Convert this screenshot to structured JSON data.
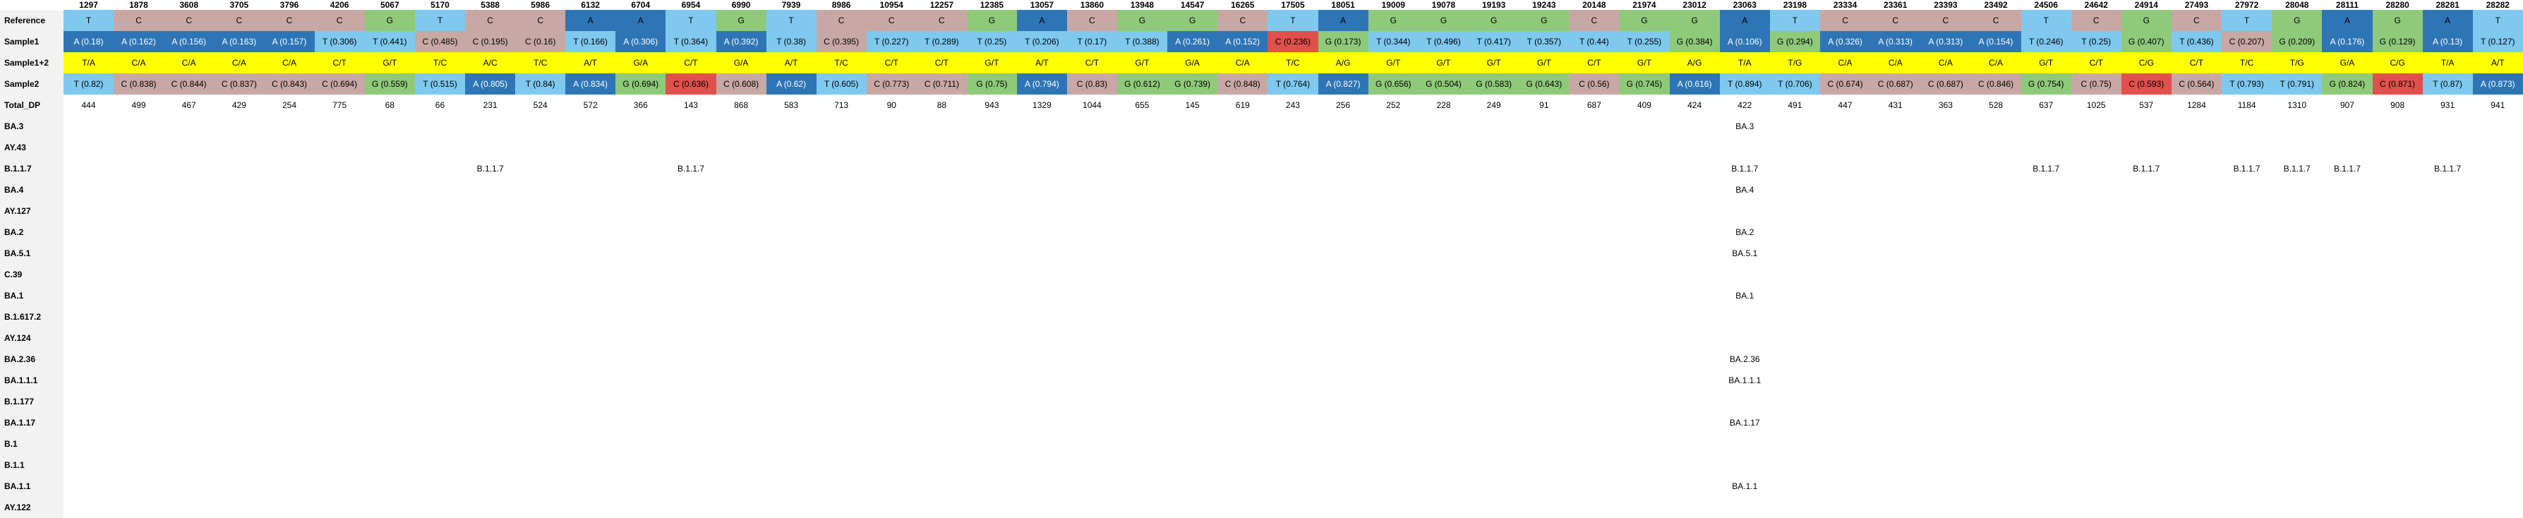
{
  "positions": [
    "1297",
    "1878",
    "3608",
    "3705",
    "3796",
    "4206",
    "5067",
    "5170",
    "5388",
    "5986",
    "6132",
    "6704",
    "6954",
    "6990",
    "7939",
    "8986",
    "10954",
    "12257",
    "12385",
    "13057",
    "13860",
    "13948",
    "14547",
    "16265",
    "17505",
    "18051",
    "19009",
    "19078",
    "19193",
    "19243",
    "20148",
    "21974",
    "23012",
    "23063",
    "23198",
    "23334",
    "23361",
    "23393",
    "23492",
    "24506",
    "24642",
    "24914",
    "27493",
    "27972",
    "28048",
    "28111",
    "28280",
    "28281",
    "28282"
  ],
  "row_labels": {
    "reference": "Reference",
    "sample1": "Sample1",
    "sample12": "Sample1+2",
    "sample2": "Sample2",
    "total_dp": "Total_DP"
  },
  "reference": [
    "T",
    "C",
    "C",
    "C",
    "C",
    "C",
    "G",
    "T",
    "C",
    "C",
    "A",
    "A",
    "T",
    "G",
    "T",
    "C",
    "C",
    "C",
    "G",
    "A",
    "C",
    "G",
    "G",
    "C",
    "T",
    "A",
    "G",
    "G",
    "G",
    "G",
    "C",
    "G",
    "G",
    "A",
    "T",
    "C",
    "C",
    "C",
    "C",
    "T",
    "C",
    "G",
    "C",
    "T",
    "G",
    "A",
    "G",
    "A",
    "T"
  ],
  "sample1": [
    "A (0.18)",
    "A (0.162)",
    "A (0.156)",
    "A (0.163)",
    "A (0.157)",
    "T (0.306)",
    "T (0.441)",
    "C (0.485)",
    "C (0.195)",
    "C (0.16)",
    "T (0.166)",
    "A (0.306)",
    "T (0.364)",
    "A (0.392)",
    "T (0.38)",
    "C (0.395)",
    "T (0.227)",
    "T (0.289)",
    "T (0.25)",
    "T (0.206)",
    "T (0.17)",
    "T (0.388)",
    "A (0.261)",
    "A (0.152)",
    "C (0.236)",
    "G (0.173)",
    "T (0.344)",
    "T (0.496)",
    "T (0.417)",
    "T (0.357)",
    "T (0.44)",
    "T (0.255)",
    "G (0.384)",
    "A (0.106)",
    "G (0.294)",
    "A (0.326)",
    "A (0.313)",
    "A (0.313)",
    "A (0.154)",
    "T (0.246)",
    "T (0.25)",
    "G (0.407)",
    "T (0.436)",
    "C (0.207)",
    "G (0.209)",
    "A (0.176)",
    "G (0.129)",
    "A (0.13)",
    "T (0.127)"
  ],
  "sample12": [
    "T/A",
    "C/A",
    "C/A",
    "C/A",
    "C/A",
    "C/T",
    "G/T",
    "T/C",
    "A/C",
    "T/C",
    "A/T",
    "G/A",
    "C/T",
    "G/A",
    "A/T",
    "T/C",
    "C/T",
    "C/T",
    "G/T",
    "A/T",
    "C/T",
    "G/T",
    "G/A",
    "C/A",
    "T/C",
    "A/G",
    "G/T",
    "G/T",
    "G/T",
    "G/T",
    "C/T",
    "G/T",
    "A/G",
    "T/A",
    "T/G",
    "C/A",
    "C/A",
    "C/A",
    "C/A",
    "G/T",
    "C/T",
    "C/G",
    "C/T",
    "T/C",
    "T/G",
    "G/A",
    "C/G",
    "T/A",
    "A/T"
  ],
  "sample2": [
    "T (0.82)",
    "C (0.838)",
    "C (0.844)",
    "C (0.837)",
    "C (0.843)",
    "C (0.694)",
    "G (0.559)",
    "T (0.515)",
    "A (0.805)",
    "T (0.84)",
    "A (0.834)",
    "G (0.694)",
    "C (0.636)",
    "C (0.608)",
    "A (0.62)",
    "T (0.605)",
    "C (0.773)",
    "C (0.711)",
    "G (0.75)",
    "A (0.794)",
    "C (0.83)",
    "G (0.612)",
    "G (0.739)",
    "C (0.848)",
    "T (0.764)",
    "A (0.827)",
    "G (0.656)",
    "G (0.504)",
    "G (0.583)",
    "G (0.643)",
    "C (0.56)",
    "G (0.745)",
    "A (0.616)",
    "T (0.894)",
    "T (0.706)",
    "C (0.674)",
    "C (0.687)",
    "C (0.687)",
    "C (0.846)",
    "G (0.754)",
    "C (0.75)",
    "C (0.593)",
    "C (0.564)",
    "T (0.793)",
    "T (0.791)",
    "G (0.824)",
    "C (0.871)",
    "T (0.87)",
    "A (0.873)"
  ],
  "total_dp": [
    "444",
    "499",
    "467",
    "429",
    "254",
    "775",
    "68",
    "66",
    "231",
    "524",
    "572",
    "366",
    "143",
    "868",
    "583",
    "713",
    "90",
    "88",
    "943",
    "1329",
    "1044",
    "655",
    "145",
    "619",
    "243",
    "256",
    "252",
    "228",
    "249",
    "91",
    "687",
    "409",
    "424",
    "422",
    "491",
    "447",
    "431",
    "363",
    "528",
    "637",
    "1025",
    "537",
    "1284",
    "1184",
    "1310",
    "907",
    "908",
    "931",
    "941"
  ],
  "lineages": [
    {
      "name": "BA.3",
      "cells": {
        "33": "BA.3"
      }
    },
    {
      "name": "AY.43",
      "cells": {}
    },
    {
      "name": "B.1.1.7",
      "cells": {
        "8": "B.1.1.7",
        "12": "B.1.1.7",
        "33": "B.1.1.7",
        "39": "B.1.1.7",
        "41": "B.1.1.7",
        "43": "B.1.1.7",
        "44": "B.1.1.7",
        "45": "B.1.1.7",
        "47": "B.1.1.7"
      }
    },
    {
      "name": "BA.4",
      "cells": {
        "33": "BA.4"
      }
    },
    {
      "name": "AY.127",
      "cells": {}
    },
    {
      "name": "BA.2",
      "cells": {
        "33": "BA.2"
      }
    },
    {
      "name": "BA.5.1",
      "cells": {
        "33": "BA.5.1"
      }
    },
    {
      "name": "C.39",
      "cells": {}
    },
    {
      "name": "BA.1",
      "cells": {
        "33": "BA.1"
      }
    },
    {
      "name": "B.1.617.2",
      "cells": {}
    },
    {
      "name": "AY.124",
      "cells": {}
    },
    {
      "name": "BA.2.36",
      "cells": {
        "33": "BA.2.36"
      }
    },
    {
      "name": "BA.1.1.1",
      "cells": {
        "33": "BA.1.1.1"
      }
    },
    {
      "name": "B.1.177",
      "cells": {}
    },
    {
      "name": "BA.1.17",
      "cells": {
        "33": "BA.1.17"
      }
    },
    {
      "name": "B.1",
      "cells": {}
    },
    {
      "name": "B.1.1",
      "cells": {}
    },
    {
      "name": "BA.1.1",
      "cells": {
        "33": "BA.1.1"
      }
    },
    {
      "name": "AY.122",
      "cells": {}
    }
  ],
  "colors": {
    "base_A": "#2e75b6",
    "base_C": "#c8a8a4",
    "base_G": "#8fca7a",
    "base_T": "#7fc9ef",
    "mixed": "#ffff00",
    "highlight_red": "#e0504c",
    "label_bg": "#f2f2f2"
  },
  "highlight_red": {
    "sample1": [
      24
    ],
    "sample2": [
      12,
      41,
      46
    ]
  }
}
